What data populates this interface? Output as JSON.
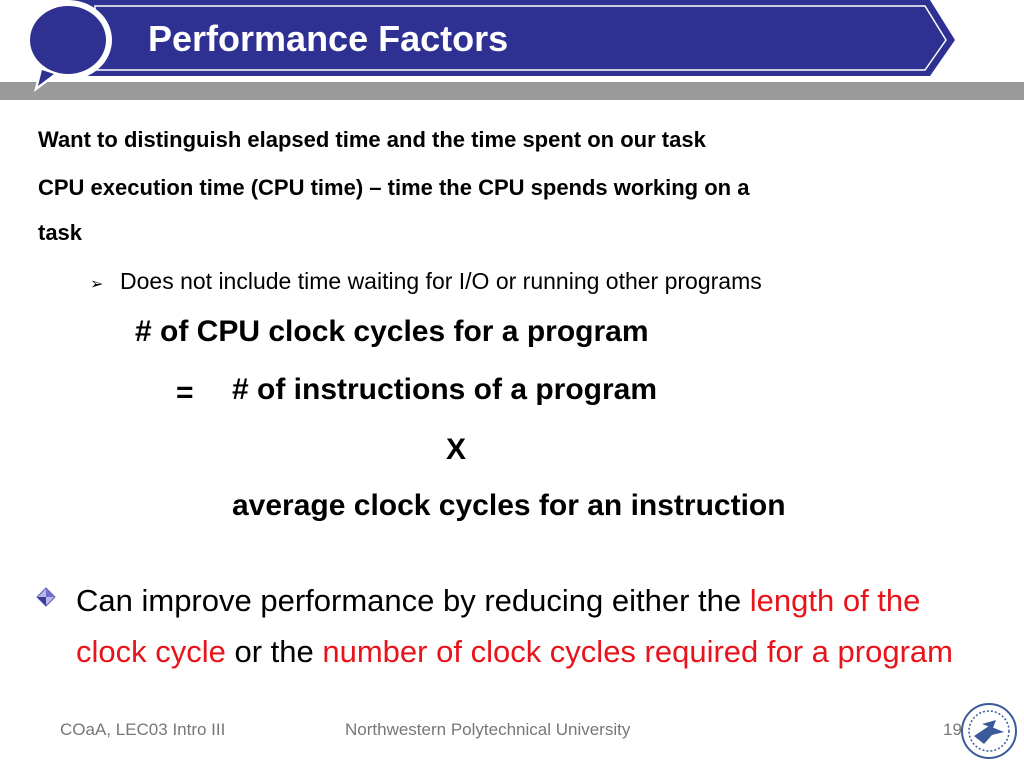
{
  "slide": {
    "title": "Performance Factors",
    "line1": "Want to distinguish elapsed time and the time spent on our task",
    "line2a": "CPU execution time (CPU time) – time the CPU spends working on a",
    "line2b": "task",
    "sub_bullet": "Does not include time waiting for I/O or running other programs",
    "formula": {
      "lhs": "# of CPU clock cycles for a program",
      "equals": "=",
      "term1": "# of instructions of a program",
      "times": "X",
      "term2": "average clock cycles for an instruction"
    },
    "bullet": {
      "part1": "Can improve performance by reducing either the ",
      "red1": "length of the clock cycle",
      "part2": " or the ",
      "red2": "number of clock cycles required for a program"
    }
  },
  "footer": {
    "course": "COaA, LEC03 Intro III",
    "university": "Northwestern Polytechnical University",
    "page": "19"
  },
  "colors": {
    "title_bar": "#2e3192",
    "accent_red": "#e8141b",
    "footer_text": "#777777"
  }
}
